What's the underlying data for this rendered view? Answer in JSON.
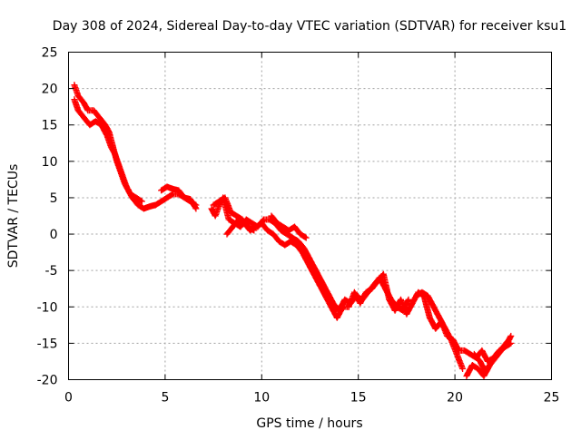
{
  "chart_data": {
    "type": "scatter",
    "title": "Day 308 of 2024, Sidereal Day-to-day VTEC variation (SDTVAR) for receiver ksu1",
    "xlabel": "GPS time / hours",
    "ylabel": "SDTVAR / TECUs",
    "xlim": [
      0,
      25
    ],
    "ylim": [
      -20,
      25
    ],
    "x_ticks": [
      0,
      5,
      10,
      15,
      20,
      25
    ],
    "y_ticks": [
      -20,
      -15,
      -10,
      -5,
      0,
      5,
      10,
      15,
      20,
      25
    ],
    "x_tick_labels": [
      "0",
      "5",
      "10",
      "15",
      "20",
      "25"
    ],
    "y_tick_labels": [
      "-20",
      "-15",
      "-10",
      "-5",
      "0",
      "5",
      "10",
      "15",
      "20",
      "25"
    ],
    "grid": true,
    "marker": "plus",
    "series": [
      {
        "name": "ksu1",
        "color": "#ff0000",
        "tracks": [
          {
            "x": [
              0.3,
              0.5,
              0.8,
              1.0,
              1.3,
              1.6,
              1.9,
              2.1,
              2.3,
              2.5,
              2.7,
              2.9,
              3.1,
              3.3,
              3.6,
              3.9,
              4.2,
              4.5,
              4.8,
              5.1,
              5.4,
              5.7,
              6.0,
              6.3,
              6.6
            ],
            "y": [
              20.5,
              19.0,
              18.0,
              17.0,
              17.0,
              16.0,
              15.0,
              14.0,
              12.0,
              10.0,
              8.5,
              7.0,
              6.0,
              5.0,
              4.0,
              3.5,
              3.8,
              4.0,
              4.5,
              5.0,
              5.5,
              5.5,
              5.0,
              4.5,
              4.0
            ]
          },
          {
            "x": [
              0.3,
              0.5,
              0.8,
              1.1,
              1.4,
              1.7,
              2.0,
              2.2,
              2.4,
              2.6,
              2.8,
              3.0,
              3.2,
              3.5,
              3.8
            ],
            "y": [
              18.5,
              17.0,
              16.0,
              15.0,
              15.5,
              15.0,
              13.5,
              12.0,
              11.0,
              9.5,
              8.0,
              6.5,
              5.5,
              5.0,
              4.5
            ]
          },
          {
            "x": [
              4.8,
              5.1,
              5.4,
              5.7,
              6.0,
              6.3,
              6.6
            ],
            "y": [
              6.0,
              6.5,
              6.2,
              6.0,
              5.0,
              4.8,
              3.5
            ]
          },
          {
            "x": [
              7.4,
              7.6,
              7.8,
              8.0,
              8.3,
              8.6,
              8.9,
              9.2,
              9.5,
              9.8,
              10.1,
              10.4,
              10.7,
              11.0,
              11.3,
              11.6,
              11.9,
              12.2,
              12.5,
              12.8,
              13.1,
              13.4,
              13.7,
              14.0,
              14.3,
              14.6,
              14.9,
              15.2,
              15.5,
              15.8,
              16.1,
              16.4,
              16.7,
              17.0,
              17.3,
              17.6
            ],
            "y": [
              3.5,
              2.5,
              4.0,
              5.0,
              2.0,
              1.5,
              1.0,
              2.0,
              1.5,
              1.0,
              2.0,
              2.0,
              1.5,
              0.5,
              0.0,
              -0.5,
              -1.0,
              -2.0,
              -3.5,
              -5.0,
              -6.5,
              -8.0,
              -9.5,
              -10.5,
              -9.0,
              -9.5,
              -8.5,
              -9.0,
              -8.0,
              -7.0,
              -6.0,
              -7.5,
              -9.0,
              -10.0,
              -10.5,
              -9.0
            ]
          },
          {
            "x": [
              7.5,
              7.8,
              8.1,
              8.4,
              8.7,
              9.0,
              9.3,
              9.6
            ],
            "y": [
              4.0,
              4.5,
              5.0,
              3.0,
              2.5,
              2.0,
              1.0,
              0.5
            ]
          },
          {
            "x": [
              8.2,
              8.5,
              8.8,
              9.1,
              9.4,
              9.7,
              10.0,
              10.3,
              10.6,
              10.9,
              11.2,
              11.5,
              11.8,
              12.1,
              12.4,
              12.7,
              13.0,
              13.3,
              13.6,
              13.9,
              14.2,
              14.5
            ],
            "y": [
              0.0,
              1.0,
              2.0,
              1.5,
              0.5,
              1.0,
              1.5,
              0.5,
              0.0,
              -1.0,
              -1.5,
              -1.0,
              -1.5,
              -2.5,
              -4.0,
              -5.5,
              -7.0,
              -8.5,
              -10.0,
              -11.5,
              -10.0,
              -10.0
            ]
          },
          {
            "x": [
              10.5,
              10.8,
              11.1,
              11.4,
              11.7,
              12.0,
              12.3
            ],
            "y": [
              2.5,
              1.5,
              1.0,
              0.5,
              1.0,
              0.0,
              -0.5
            ]
          },
          {
            "x": [
              14.5,
              14.8,
              15.1,
              15.4,
              15.7,
              16.0,
              16.3,
              16.6,
              16.9,
              17.2,
              17.5,
              17.8,
              18.1,
              18.4,
              18.7,
              19.0,
              19.3,
              19.6,
              19.9,
              20.2,
              20.5,
              20.8,
              21.1,
              21.4,
              21.7,
              22.0,
              22.3,
              22.6,
              22.9
            ],
            "y": [
              -10.0,
              -8.0,
              -9.5,
              -8.0,
              -7.5,
              -6.5,
              -5.5,
              -9.0,
              -10.5,
              -9.0,
              -11.0,
              -9.5,
              -8.0,
              -8.5,
              -11.5,
              -13.0,
              -12.0,
              -14.0,
              -14.5,
              -16.0,
              -16.0,
              -16.5,
              -17.0,
              -16.0,
              -17.5,
              -17.0,
              -16.0,
              -15.5,
              -15.0
            ]
          },
          {
            "x": [
              18.0,
              18.3,
              18.6,
              18.9,
              19.2,
              19.5,
              19.8,
              20.1,
              20.4
            ],
            "y": [
              -8.5,
              -8.0,
              -8.5,
              -10.0,
              -11.5,
              -13.0,
              -14.5,
              -16.5,
              -18.5
            ]
          },
          {
            "x": [
              20.6,
              20.9,
              21.2,
              21.5,
              21.8,
              22.1,
              22.4,
              22.7,
              22.9
            ],
            "y": [
              -19.5,
              -18.0,
              -18.5,
              -19.5,
              -18.0,
              -17.0,
              -16.0,
              -15.0,
              -14.0
            ]
          },
          {
            "x": [
              21.0,
              21.3,
              21.6,
              21.9,
              22.2,
              22.5,
              22.8
            ],
            "y": [
              -16.5,
              -17.5,
              -19.0,
              -17.5,
              -16.5,
              -15.5,
              -14.5
            ]
          }
        ]
      }
    ]
  }
}
